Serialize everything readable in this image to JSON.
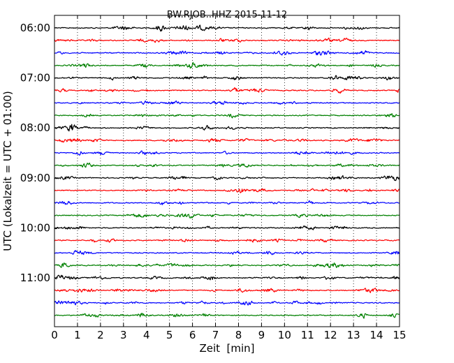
{
  "chart_data": {
    "type": "line",
    "title": "BW.RJOB..HHZ 2015-11-12",
    "xlabel": "Zeit  [min]",
    "ylabel": "UTC (Lokalzeit = UTC + 01:00)",
    "xlim": [
      0,
      15
    ],
    "x_ticks": [
      "0",
      "1",
      "2",
      "3",
      "4",
      "5",
      "6",
      "7",
      "8",
      "9",
      "10",
      "11",
      "12",
      "13",
      "14",
      "15"
    ],
    "y_tick_labels": [
      "06:00",
      "07:00",
      "08:00",
      "09:00",
      "10:00",
      "11:00"
    ],
    "grid": "vertical dotted at each minute",
    "trace_duration_min": 15,
    "trace_count": 24,
    "start_time": "06:00",
    "color_cycle": [
      "#000000",
      "#ff0000",
      "#0000ff",
      "#008000"
    ],
    "traces": [
      {
        "start": "06:00",
        "color": "#000000"
      },
      {
        "start": "06:15",
        "color": "#ff0000"
      },
      {
        "start": "06:30",
        "color": "#0000ff"
      },
      {
        "start": "06:45",
        "color": "#008000"
      },
      {
        "start": "07:00",
        "color": "#000000"
      },
      {
        "start": "07:15",
        "color": "#ff0000"
      },
      {
        "start": "07:30",
        "color": "#0000ff"
      },
      {
        "start": "07:45",
        "color": "#008000"
      },
      {
        "start": "08:00",
        "color": "#000000"
      },
      {
        "start": "08:15",
        "color": "#ff0000"
      },
      {
        "start": "08:30",
        "color": "#0000ff"
      },
      {
        "start": "08:45",
        "color": "#008000"
      },
      {
        "start": "09:00",
        "color": "#000000"
      },
      {
        "start": "09:15",
        "color": "#ff0000"
      },
      {
        "start": "09:30",
        "color": "#0000ff"
      },
      {
        "start": "09:45",
        "color": "#008000"
      },
      {
        "start": "10:00",
        "color": "#000000"
      },
      {
        "start": "10:15",
        "color": "#ff0000"
      },
      {
        "start": "10:30",
        "color": "#0000ff"
      },
      {
        "start": "10:45",
        "color": "#008000"
      },
      {
        "start": "11:00",
        "color": "#000000"
      },
      {
        "start": "11:15",
        "color": "#ff0000"
      },
      {
        "start": "11:30",
        "color": "#0000ff"
      },
      {
        "start": "11:45",
        "color": "#008000"
      }
    ]
  }
}
